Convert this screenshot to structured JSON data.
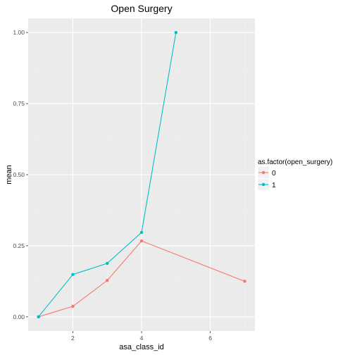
{
  "chart_data": {
    "type": "line",
    "title": "Open Surgery",
    "xlabel": "asa_class_id",
    "ylabel": "mean",
    "xlim": [
      0.7,
      7.3
    ],
    "ylim": [
      -0.05,
      1.05
    ],
    "x_ticks": [
      2,
      4,
      6
    ],
    "y_ticks": [
      0.0,
      0.25,
      0.5,
      0.75,
      1.0
    ],
    "y_tick_labels": [
      "0.00",
      "0.25",
      "0.50",
      "0.75",
      "1.00"
    ],
    "legend": {
      "title": "as.factor(open_surgery)",
      "position": "right"
    },
    "series": [
      {
        "name": "0",
        "color": "#F8766D",
        "points": [
          [
            1,
            0.0
          ],
          [
            2,
            0.037
          ],
          [
            3,
            0.128
          ],
          [
            4,
            0.267
          ],
          [
            7,
            0.125
          ]
        ]
      },
      {
        "name": "1",
        "color": "#00BFC4",
        "points": [
          [
            1,
            0.0
          ],
          [
            2,
            0.149
          ],
          [
            3,
            0.188
          ],
          [
            4,
            0.297
          ],
          [
            5,
            1.0
          ]
        ]
      }
    ]
  }
}
